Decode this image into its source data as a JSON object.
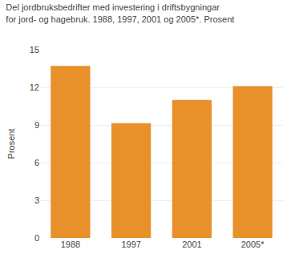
{
  "chart_data": {
    "type": "bar",
    "title": "Del jordbruksbedrifter med investering i driftsbygningar\nfor jord- og hagebruk. 1988, 1997, 2001 og 2005*. Prosent",
    "ylabel": "Prosent",
    "categories": [
      "1988",
      "1997",
      "2001",
      "2005*"
    ],
    "values": [
      13.7,
      9.15,
      11.0,
      12.1
    ],
    "color": "#E8902A",
    "ylim": [
      0,
      15
    ],
    "yticks": [
      0,
      3,
      6,
      9,
      12,
      15
    ],
    "grid": true
  }
}
